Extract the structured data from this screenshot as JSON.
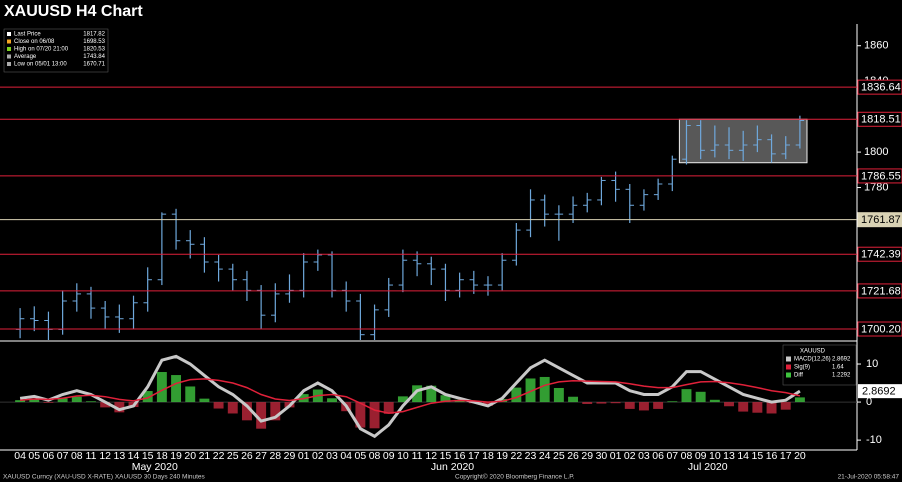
{
  "chart_data": {
    "type": "ohlc",
    "title": "XAUUSD H4 Chart",
    "categories": [
      "04",
      "05",
      "06",
      "07",
      "08",
      "11",
      "12",
      "13",
      "14",
      "15",
      "18",
      "19",
      "20",
      "21",
      "22",
      "25",
      "26",
      "27",
      "28",
      "29",
      "01",
      "02",
      "03",
      "04",
      "05",
      "08",
      "09",
      "10",
      "11",
      "12",
      "15",
      "16",
      "17",
      "18",
      "19",
      "22",
      "23",
      "24",
      "25",
      "26",
      "29",
      "30",
      "01",
      "02",
      "03",
      "06",
      "07",
      "08",
      "09",
      "10",
      "13",
      "14",
      "15",
      "16",
      "17",
      "20"
    ],
    "months": [
      "May 2020",
      "Jun 2020",
      "Jul 2020"
    ],
    "open": [
      1700,
      1706,
      1705,
      1700,
      1716,
      1720,
      1712,
      1707,
      1706,
      1715,
      1728,
      1765,
      1750,
      1748,
      1738,
      1734,
      1728,
      1722,
      1708,
      1720,
      1722,
      1738,
      1742,
      1722,
      1716,
      1697,
      1711,
      1725,
      1739,
      1737,
      1734,
      1722,
      1728,
      1725,
      1725,
      1739,
      1756,
      1773,
      1765,
      1765,
      1770,
      1773,
      1784,
      1779,
      1770,
      1776,
      1782,
      1796,
      1815,
      1801,
      1804,
      1801,
      1804,
      1807,
      1799,
      1804
    ],
    "high": [
      1712,
      1713,
      1710,
      1722,
      1726,
      1724,
      1716,
      1714,
      1719,
      1735,
      1766,
      1768,
      1756,
      1752,
      1742,
      1737,
      1733,
      1725,
      1726,
      1731,
      1743,
      1745,
      1744,
      1727,
      1720,
      1714,
      1729,
      1745,
      1744,
      1741,
      1737,
      1732,
      1733,
      1730,
      1743,
      1760,
      1779,
      1776,
      1770,
      1775,
      1777,
      1786,
      1789,
      1782,
      1779,
      1785,
      1798,
      1818,
      1818,
      1815,
      1814,
      1812,
      1815,
      1810,
      1809,
      1820.53
    ],
    "low": [
      1695,
      1699,
      1694,
      1697,
      1710,
      1706,
      1700,
      1698,
      1700,
      1710,
      1725,
      1745,
      1740,
      1732,
      1727,
      1722,
      1716,
      1700,
      1704,
      1715,
      1718,
      1733,
      1718,
      1710,
      1694,
      1694,
      1707,
      1721,
      1730,
      1725,
      1716,
      1718,
      1720,
      1719,
      1722,
      1736,
      1752,
      1758,
      1750,
      1760,
      1766,
      1770,
      1772,
      1760,
      1767,
      1773,
      1778,
      1793,
      1796,
      1797,
      1796,
      1795,
      1800,
      1794,
      1796,
      1802
    ],
    "close": [
      1706,
      1705,
      1700,
      1716,
      1720,
      1712,
      1707,
      1706,
      1715,
      1728,
      1765,
      1750,
      1748,
      1738,
      1734,
      1728,
      1722,
      1708,
      1720,
      1722,
      1738,
      1742,
      1722,
      1716,
      1697,
      1711,
      1725,
      1739,
      1737,
      1734,
      1722,
      1728,
      1725,
      1725,
      1739,
      1756,
      1773,
      1765,
      1765,
      1770,
      1773,
      1784,
      1779,
      1770,
      1776,
      1782,
      1796,
      1815,
      1801,
      1804,
      1801,
      1804,
      1807,
      1799,
      1804,
      1817.82
    ],
    "color": "#6fa8dc",
    "ylim": [
      1694,
      1870
    ],
    "yticks": [
      1780,
      1800,
      1840,
      1860
    ],
    "levels": [
      {
        "value": 1836.64,
        "label": "1836.64",
        "color": "#e0213a"
      },
      {
        "value": 1818.51,
        "label": "1818.51",
        "color": "#e0213a"
      },
      {
        "value": 1786.55,
        "label": "1786.55",
        "color": "#e0213a"
      },
      {
        "value": 1761.87,
        "label": "1761.87",
        "color": "#d9d2b4"
      },
      {
        "value": 1742.39,
        "label": "1742.39",
        "color": "#e0213a"
      },
      {
        "value": 1721.68,
        "label": "1721.68",
        "color": "#e0213a"
      },
      {
        "value": 1700.2,
        "label": "1700.20",
        "color": "#e0213a"
      }
    ],
    "box": {
      "from": "08",
      "to": "20",
      "low": 1794,
      "high": 1818.51
    },
    "legend": [
      {
        "label": "Last Price",
        "value": 1817.82,
        "color": "#ffffff"
      },
      {
        "label": "Close on 06/08",
        "value": 1698.53,
        "color": "#f5a623"
      },
      {
        "label": "High on 07/20 21:00",
        "value": 1820.53,
        "color": "#7ed321"
      },
      {
        "label": "Average",
        "value": 1743.84,
        "color": "#aaaaaa"
      },
      {
        "label": "Low on 05/01 13:00",
        "value": 1670.71,
        "color": "#aaaaaa"
      }
    ],
    "macd": {
      "title": "XAUUSD",
      "ylim": [
        -12.6,
        15
      ],
      "yticks": [
        -10,
        0,
        10
      ],
      "series": [
        {
          "name": "MACD(12,26)",
          "color": "#c8c8c8",
          "values": [
            1,
            1.5,
            0.5,
            2,
            3,
            2,
            0,
            -2,
            -1,
            4,
            11,
            12,
            10,
            7,
            4,
            2,
            -1,
            -5,
            -4,
            -1,
            3,
            5,
            3,
            -1,
            -7,
            -9,
            -6,
            -1,
            3,
            4,
            2,
            1,
            0,
            -1,
            1,
            5,
            9,
            11,
            9,
            7,
            5,
            5,
            5,
            3,
            2,
            2,
            4,
            8,
            8,
            6,
            4,
            2,
            1,
            0,
            0.5,
            2.8692
          ]
        },
        {
          "name": "Sig(9)",
          "color": "#e0213a",
          "values": [
            0.5,
            0.8,
            0.7,
            1,
            1.6,
            1.8,
            1.4,
            0.7,
            0.3,
            1.1,
            3.1,
            4.9,
            5.9,
            6.1,
            5.7,
            5,
            3.8,
            2,
            0.8,
            0.4,
            0.9,
            1.7,
            2,
            1.4,
            -0.3,
            -2.1,
            -2.9,
            -2.5,
            -1.4,
            -0.3,
            0.2,
            0.4,
            0.3,
            0,
            0.2,
            1.2,
            2.8,
            4.4,
            5.3,
            5.6,
            5.5,
            5.4,
            5.3,
            4.8,
            4.2,
            3.8,
            3.8,
            4.6,
            5.3,
            5.4,
            5.1,
            4.5,
            3.8,
            3,
            2.5,
            1.64
          ]
        },
        {
          "name": "Diff",
          "color": "#3ec43e",
          "values": [
            0.5,
            0.7,
            -0.2,
            1,
            1.4,
            0.2,
            -1.4,
            -2.7,
            -1.3,
            2.9,
            7.9,
            7.1,
            4.1,
            0.9,
            -1.7,
            -3,
            -4.8,
            -7,
            -4.8,
            -1.4,
            2.1,
            3.3,
            1,
            -2.4,
            -6.7,
            -6.9,
            -3.1,
            1.5,
            4.4,
            4.3,
            1.8,
            0.6,
            -0.3,
            -1,
            0.8,
            3.8,
            6.2,
            6.6,
            3.7,
            1.4,
            -0.5,
            -0.4,
            -0.3,
            -1.8,
            -2.2,
            -1.8,
            0.2,
            3.4,
            2.7,
            0.6,
            -1.1,
            -2.5,
            -2.8,
            -3,
            -2,
            1.2292
          ]
        }
      ]
    },
    "footer": [
      "XAUUSD Curncy (XAU-USD X-RATE) XAUUSD 30 Days 240 Minutes",
      "Copyright© 2020 Bloomberg Finance L.P.",
      "21-Jul-2020 05:58:47"
    ]
  }
}
